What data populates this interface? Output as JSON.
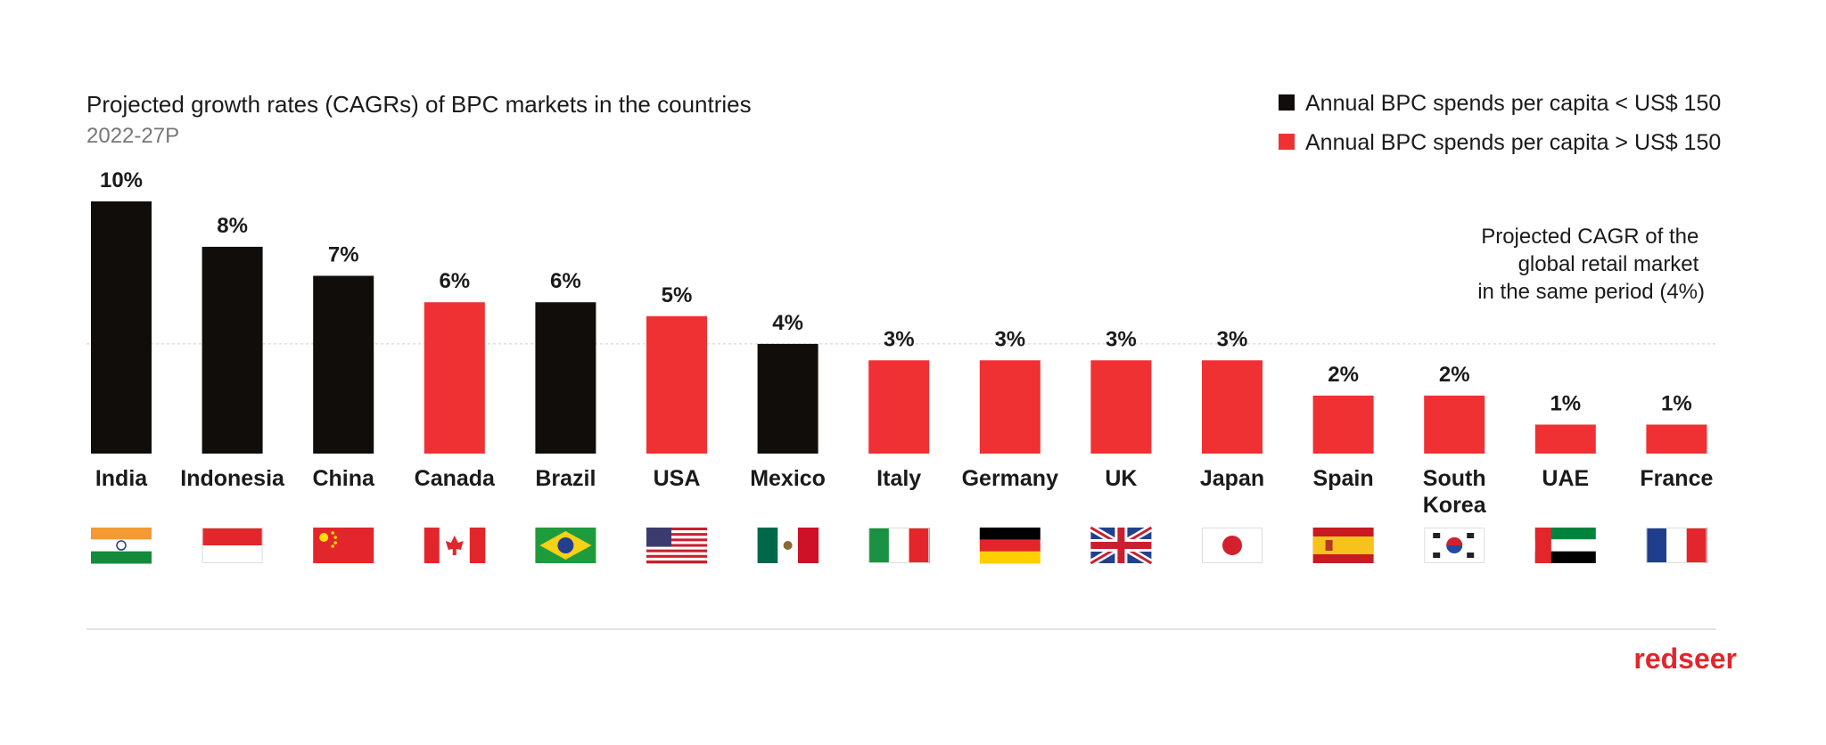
{
  "chart_data": {
    "type": "bar",
    "title": "Projected growth rates (CAGRs) of BPC markets in the countries",
    "subtitle": "2022-27P",
    "categories": [
      "India",
      "Indonesia",
      "China",
      "Canada",
      "Brazil",
      "USA",
      "Mexico",
      "Italy",
      "Germany",
      "UK",
      "Japan",
      "Spain",
      "South Korea",
      "UAE",
      "France"
    ],
    "category_lines": [
      [
        "India"
      ],
      [
        "Indonesia"
      ],
      [
        "China"
      ],
      [
        "Canada"
      ],
      [
        "Brazil"
      ],
      [
        "USA"
      ],
      [
        "Mexico"
      ],
      [
        "Italy"
      ],
      [
        "Germany"
      ],
      [
        "UK"
      ],
      [
        "Japan"
      ],
      [
        "Spain"
      ],
      [
        "South",
        "Korea"
      ],
      [
        "UAE"
      ],
      [
        "France"
      ]
    ],
    "values": [
      10,
      8,
      7,
      6,
      6,
      5,
      4,
      3,
      3,
      3,
      3,
      2,
      2,
      1,
      1
    ],
    "plot_values": [
      10,
      8.2,
      7.05,
      6,
      6,
      5.45,
      4.35,
      3.7,
      3.7,
      3.7,
      3.7,
      2.3,
      2.3,
      1.15,
      1.15
    ],
    "value_labels": [
      "10%",
      "8%",
      "7%",
      "6%",
      "6%",
      "5%",
      "4%",
      "3%",
      "3%",
      "3%",
      "3%",
      "2%",
      "2%",
      "1%",
      "1%"
    ],
    "groups": [
      "low",
      "low",
      "low",
      "high",
      "low",
      "high",
      "low",
      "high",
      "high",
      "high",
      "high",
      "high",
      "high",
      "high",
      "high"
    ],
    "flags": [
      "india-flag",
      "indonesia-flag",
      "china-flag",
      "canada-flag",
      "brazil-flag",
      "usa-flag",
      "mexico-flag",
      "italy-flag",
      "germany-flag",
      "uk-flag",
      "japan-flag",
      "spain-flag",
      "south-korea-flag",
      "uae-flag",
      "france-flag"
    ],
    "legend": [
      {
        "key": "low",
        "label": "Annual BPC spends per capita < US$ 150",
        "color": "#110d0b"
      },
      {
        "key": "high",
        "label": "Annual BPC spends per capita > US$ 150",
        "color": "#ef3134"
      }
    ],
    "reference_line": {
      "value": 4.35,
      "label_lines": [
        "Projected CAGR of the",
        "global retail market",
        "in the same period (4%)"
      ]
    },
    "ylim": [
      0,
      10
    ],
    "xlabel": "",
    "ylabel": "",
    "grid": false
  },
  "brand": {
    "logo_text": "redseer",
    "color": "#e2262b"
  }
}
